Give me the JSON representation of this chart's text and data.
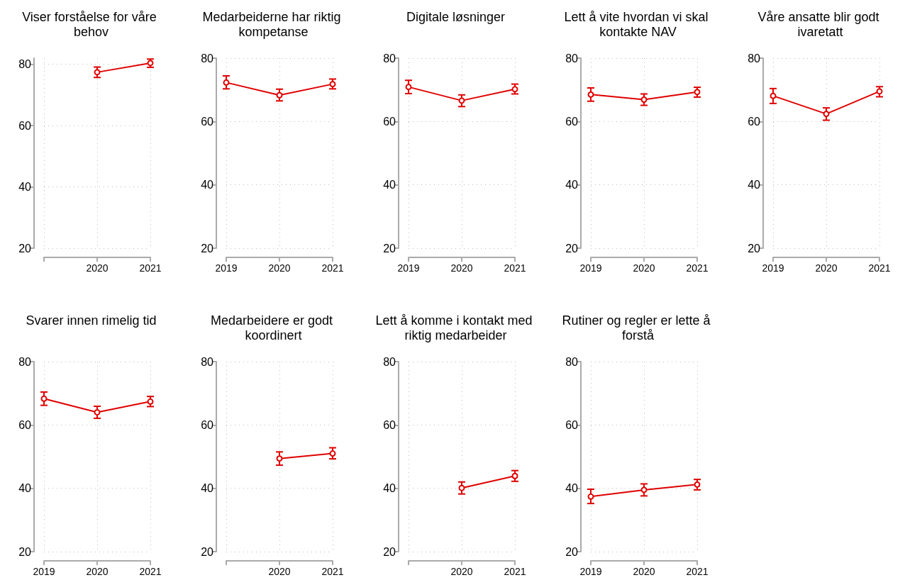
{
  "chart_data": [
    {
      "type": "line",
      "title": "Viser forståelse for våre behov",
      "categories": [
        null,
        "2020",
        "2021"
      ],
      "values": [
        null,
        77.4,
        80.4
      ],
      "errors": [
        null,
        [
          75.7,
          79.1
        ],
        [
          79.0,
          81.7
        ]
      ],
      "color": "#e00000",
      "ylim": [
        20,
        82
      ],
      "yticks": [
        20,
        40,
        60,
        80
      ],
      "grid": true,
      "marker": "circle"
    },
    {
      "type": "line",
      "title": "Medarbeiderne har riktig kompetanse",
      "categories": [
        "2019",
        "2020",
        "2021"
      ],
      "values": [
        72.3,
        68.3,
        71.8
      ],
      "errors": [
        [
          70.3,
          74.4
        ],
        [
          66.5,
          70.2
        ],
        [
          70.3,
          73.4
        ]
      ],
      "color": "#e00000",
      "ylim": [
        20,
        80
      ],
      "yticks": [
        20,
        40,
        60,
        80
      ],
      "grid": true,
      "marker": "circle"
    },
    {
      "type": "line",
      "title": "Digitale løsninger",
      "categories": [
        "2019",
        "2020",
        "2021"
      ],
      "values": [
        70.9,
        66.6,
        70.2
      ],
      "errors": [
        [
          68.8,
          73.0
        ],
        [
          64.7,
          68.4
        ],
        [
          68.7,
          71.8
        ]
      ],
      "color": "#e00000",
      "ylim": [
        20,
        80
      ],
      "yticks": [
        20,
        40,
        60,
        80
      ],
      "grid": true,
      "marker": "circle"
    },
    {
      "type": "line",
      "title": "Lett å vite hvordan vi skal kontakte NAV",
      "categories": [
        "2019",
        "2020",
        "2021"
      ],
      "values": [
        68.5,
        66.9,
        69.3
      ],
      "errors": [
        [
          66.4,
          70.6
        ],
        [
          65.1,
          68.7
        ],
        [
          67.7,
          70.8
        ]
      ],
      "color": "#e00000",
      "ylim": [
        20,
        80
      ],
      "yticks": [
        20,
        40,
        60,
        80
      ],
      "grid": true,
      "marker": "circle"
    },
    {
      "type": "line",
      "title": "Våre ansatte blir godt ivaretatt",
      "categories": [
        "2019",
        "2020",
        "2021"
      ],
      "values": [
        68.1,
        62.4,
        69.5
      ],
      "errors": [
        [
          65.7,
          70.4
        ],
        [
          60.4,
          64.3
        ],
        [
          67.8,
          71.0
        ]
      ],
      "color": "#e00000",
      "ylim": [
        20,
        80
      ],
      "yticks": [
        20,
        40,
        60,
        80
      ],
      "grid": true,
      "marker": "circle"
    },
    {
      "type": "line",
      "title": "Svarer innen rimelig tid",
      "categories": [
        "2019",
        "2020",
        "2021"
      ],
      "values": [
        68.3,
        64.0,
        67.4
      ],
      "errors": [
        [
          66.2,
          70.4
        ],
        [
          62.1,
          65.9
        ],
        [
          65.8,
          69.0
        ]
      ],
      "color": "#e00000",
      "ylim": [
        20,
        80
      ],
      "yticks": [
        20,
        40,
        60,
        80
      ],
      "grid": true,
      "marker": "circle"
    },
    {
      "type": "line",
      "title": "Medarbeidere er godt koordinert",
      "categories": [
        null,
        "2020",
        "2021"
      ],
      "values": [
        null,
        49.4,
        51.0
      ],
      "errors": [
        null,
        [
          47.3,
          51.5
        ],
        [
          49.3,
          52.8
        ]
      ],
      "color": "#e00000",
      "ylim": [
        20,
        80
      ],
      "yticks": [
        20,
        40,
        60,
        80
      ],
      "grid": true,
      "marker": "circle"
    },
    {
      "type": "line",
      "title": "Lett å komme i kontakt med riktig medarbeider",
      "categories": [
        null,
        "2020",
        "2021"
      ],
      "values": [
        null,
        40.1,
        43.9
      ],
      "errors": [
        null,
        [
          38.2,
          42.0
        ],
        [
          42.2,
          45.6
        ]
      ],
      "color": "#e00000",
      "ylim": [
        20,
        80
      ],
      "yticks": [
        20,
        40,
        60,
        80
      ],
      "grid": true,
      "marker": "circle"
    },
    {
      "type": "line",
      "title": "Rutiner og regler er lette å forstå",
      "categories": [
        "2019",
        "2020",
        "2021"
      ],
      "values": [
        37.4,
        39.5,
        41.2
      ],
      "errors": [
        [
          35.2,
          39.7
        ],
        [
          37.6,
          41.4
        ],
        [
          39.5,
          42.8
        ]
      ],
      "color": "#e00000",
      "ylim": [
        20,
        80
      ],
      "yticks": [
        20,
        40,
        60,
        80
      ],
      "grid": true,
      "marker": "circle"
    }
  ]
}
